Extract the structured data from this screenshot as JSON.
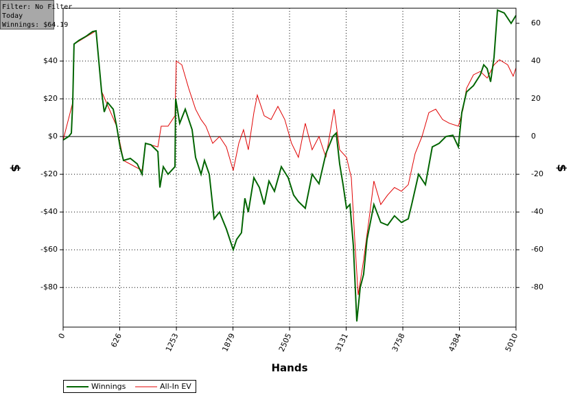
{
  "chart_data": {
    "type": "line",
    "annotations": [
      "Filter: No Filter",
      "Today",
      "Winnings: $64.19"
    ],
    "xlabel": "Hands",
    "ylabel": "$",
    "y2label": "$",
    "xlim": [
      0,
      5010
    ],
    "xticks": [
      0,
      626,
      1253,
      1879,
      2505,
      3131,
      3758,
      4384,
      5010
    ],
    "ylim": [
      -101,
      68
    ],
    "yticks": [
      {
        "value": -80,
        "label": "-$80"
      },
      {
        "value": -60,
        "label": "-$60"
      },
      {
        "value": -40,
        "label": "-$40"
      },
      {
        "value": -20,
        "label": "-$20"
      },
      {
        "value": 0,
        "label": "$0"
      },
      {
        "value": 20,
        "label": "$20"
      },
      {
        "value": 40,
        "label": "$40"
      }
    ],
    "y2lim": [
      -101,
      68
    ],
    "y2ticks": [
      -80,
      -60,
      -40,
      -20,
      0,
      20,
      40,
      60
    ],
    "grid": true,
    "legend": "bottom-left",
    "series": [
      {
        "name": "Winnings",
        "color": "#006400",
        "x": [
          0,
          61,
          91,
          106,
          121,
          175,
          250,
          326,
          364,
          387,
          425,
          455,
          493,
          554,
          592,
          630,
          668,
          744,
          820,
          873,
          911,
          972,
          1048,
          1070,
          1108,
          1161,
          1237,
          1245,
          1290,
          1351,
          1427,
          1465,
          1526,
          1564,
          1617,
          1670,
          1730,
          1806,
          1882,
          1920,
          1973,
          2011,
          2049,
          2110,
          2171,
          2224,
          2277,
          2338,
          2414,
          2490,
          2550,
          2603,
          2679,
          2755,
          2831,
          2907,
          2983,
          3021,
          3059,
          3097,
          3135,
          3173,
          3211,
          3249,
          3287,
          3324,
          3362,
          3438,
          3514,
          3590,
          3666,
          3742,
          3818,
          3856,
          3932,
          4008,
          4084,
          4160,
          4236,
          4312,
          4372,
          4410,
          4463,
          4539,
          4615,
          4653,
          4691,
          4729,
          4767,
          4805,
          4880,
          4956,
          5010
        ],
        "values": [
          -1.8,
          0,
          1.8,
          18,
          49,
          51,
          53,
          55.6,
          56,
          44,
          24,
          13,
          18,
          14.5,
          5.5,
          -5.5,
          -12.7,
          -11.6,
          -14.5,
          -20,
          -3.6,
          -4.4,
          -8,
          -27,
          -16,
          -20,
          -16,
          20,
          7,
          14.5,
          3.6,
          -11,
          -20,
          -12.7,
          -20,
          -43.6,
          -40,
          -49,
          -60,
          -54.5,
          -51,
          -32.7,
          -40,
          -21.8,
          -27,
          -36,
          -23.6,
          -29,
          -16,
          -21.8,
          -31,
          -34.5,
          -38,
          -20,
          -25,
          -9,
          0,
          1.8,
          -14.5,
          -25.5,
          -38,
          -36,
          -58,
          -98,
          -80,
          -73,
          -54.5,
          -36,
          -45.5,
          -47,
          -42,
          -45.5,
          -43.6,
          -36,
          -20,
          -25.5,
          -5.5,
          -3.6,
          0,
          0.7,
          -5.5,
          12.7,
          23.6,
          27,
          32.7,
          38,
          36,
          29,
          42,
          67,
          65.5,
          60,
          64.19
        ]
      },
      {
        "name": "All-In EV",
        "color": "#e00000",
        "x": [
          0,
          106,
          121,
          364,
          425,
          592,
          668,
          873,
          911,
          1048,
          1085,
          1161,
          1237,
          1252,
          1313,
          1389,
          1465,
          1526,
          1579,
          1655,
          1730,
          1806,
          1882,
          1943,
          1996,
          2049,
          2110,
          2148,
          2224,
          2300,
          2376,
          2452,
          2527,
          2603,
          2679,
          2755,
          2831,
          2907,
          2998,
          3059,
          3135,
          3188,
          3226,
          3264,
          3324,
          3385,
          3438,
          3514,
          3590,
          3666,
          3742,
          3818,
          3894,
          3970,
          4046,
          4122,
          4198,
          4274,
          4372,
          4425,
          4463,
          4539,
          4615,
          4691,
          4767,
          4827,
          4918,
          4979,
          5010
        ],
        "values": [
          -1.8,
          18,
          49,
          56,
          24,
          5.5,
          -12.7,
          -18,
          -3.6,
          -5.5,
          5.5,
          5.5,
          11,
          40,
          38,
          25.5,
          14.5,
          9,
          5.5,
          -3.6,
          0,
          -5.5,
          -18,
          -3.6,
          3.6,
          -7,
          12.7,
          22,
          11,
          9,
          16,
          9,
          -3.6,
          -11,
          7,
          -7,
          0,
          -11,
          14.5,
          -7,
          -11,
          -21.8,
          -54.5,
          -84,
          -65.5,
          -43.6,
          -23.6,
          -36,
          -31,
          -27,
          -29,
          -25.5,
          -9,
          0,
          12.7,
          14.5,
          9,
          7,
          5.5,
          14.5,
          25.5,
          32.7,
          34.5,
          31,
          38,
          40.7,
          38,
          32,
          36.4
        ]
      }
    ]
  }
}
